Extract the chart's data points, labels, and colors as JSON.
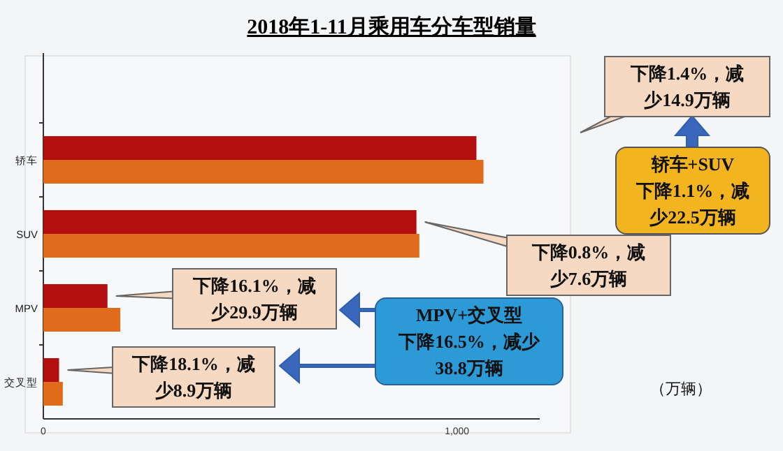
{
  "chart_data": {
    "type": "bar",
    "orientation": "horizontal",
    "title": "2018年1-11月乘用车分车型销量",
    "categories": [
      "轿车",
      "SUV",
      "MPV",
      "交叉型"
    ],
    "series": [
      {
        "color": "#b30f0f",
        "values": [
          1047,
          902,
          155,
          38
        ]
      },
      {
        "color": "#e06b1a",
        "values": [
          1064,
          909,
          186,
          47
        ]
      }
    ],
    "xlim": [
      0,
      1200
    ],
    "xticks": [
      0,
      {
        "value": 1000,
        "label": "1,000"
      }
    ],
    "grid": false,
    "annotations": [
      "下降1.4%，减少14.9万辆",
      "轿车+SUV",
      "下降1.1%，减少22.5万辆",
      "下降0.8%，减少7.6万辆",
      "下降16.1%，减少29.9万辆",
      "MPV+交叉型",
      "下降16.5%，减少38.8万辆",
      "下降18.1%，减少8.9万辆",
      "（万辆）"
    ]
  }
}
